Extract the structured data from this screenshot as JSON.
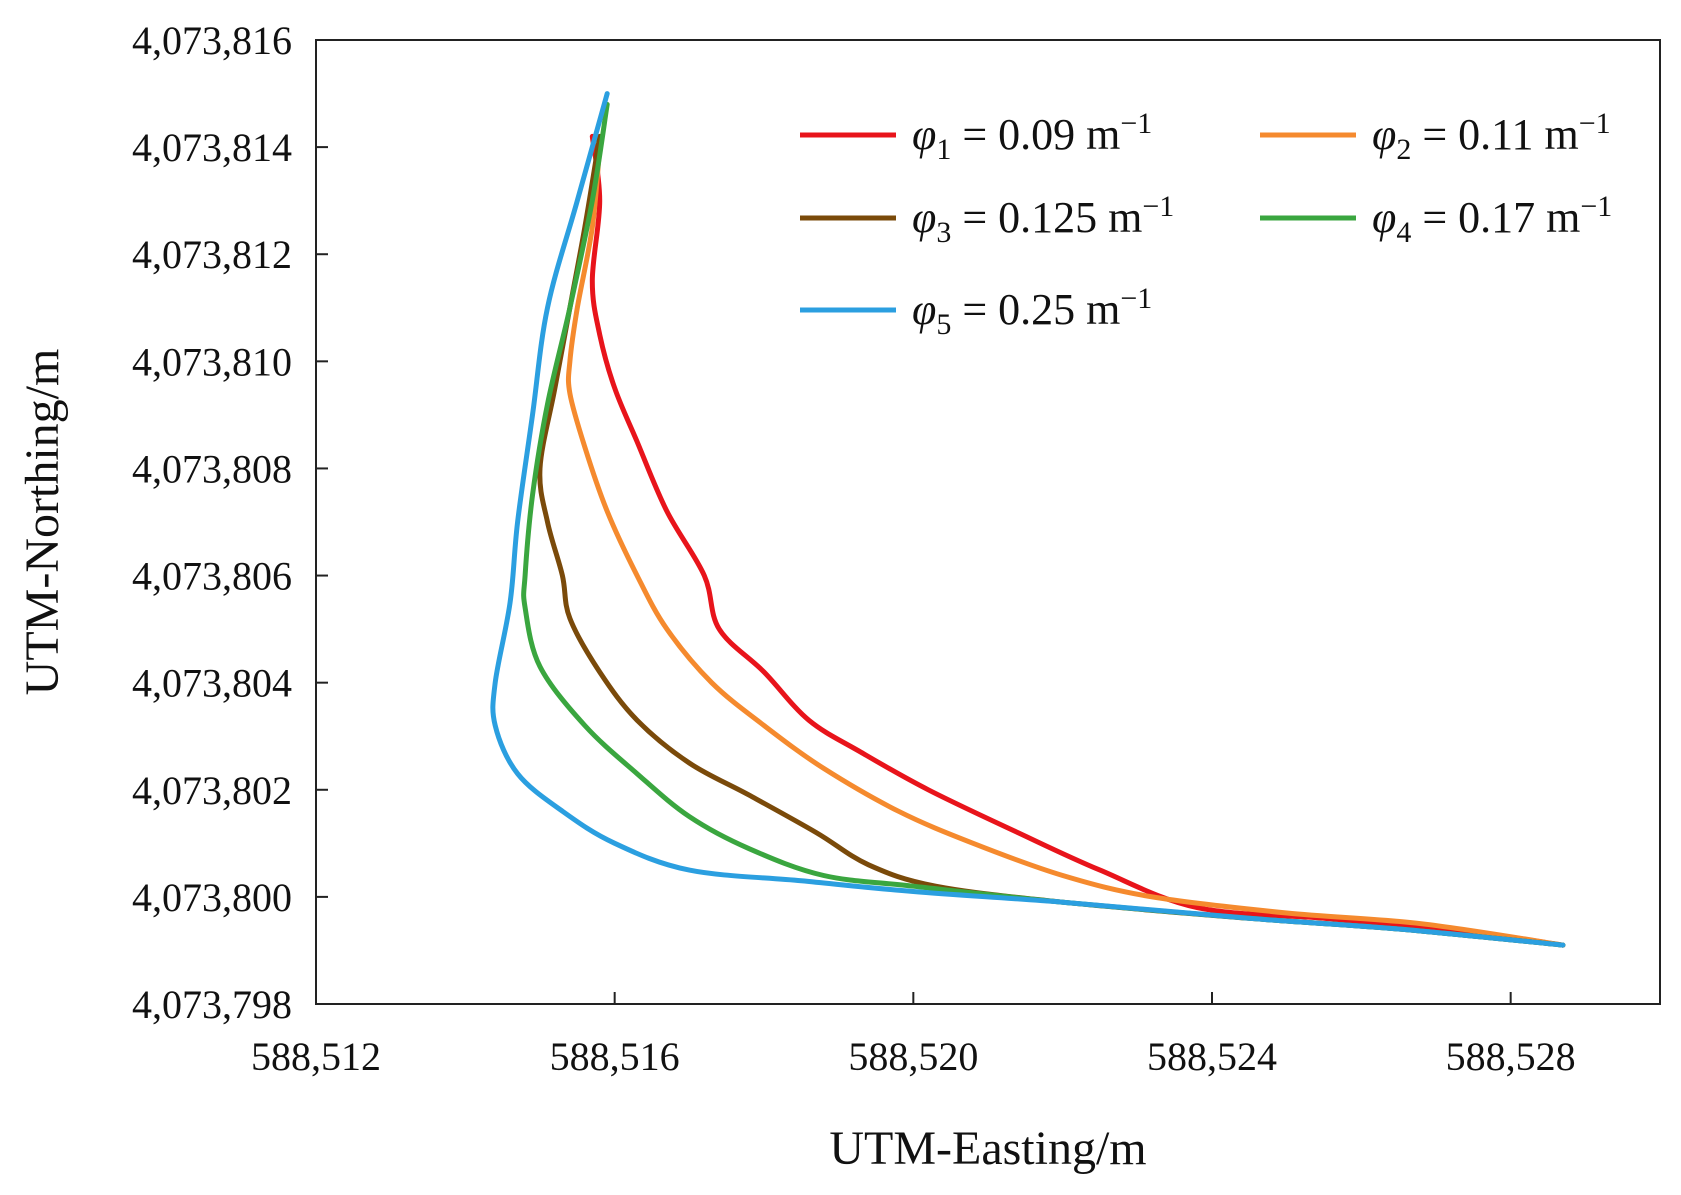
{
  "chart_data": {
    "type": "line",
    "title": "",
    "xlabel": "UTM-Easting/m",
    "ylabel": "UTM-Northing/m",
    "xlim": [
      588512,
      588530
    ],
    "ylim": [
      4073798,
      4073816
    ],
    "x_ticks": [
      588512,
      588516,
      588520,
      588524,
      588528
    ],
    "x_tick_labels": [
      "588,512",
      "588,516",
      "588,520",
      "588,524",
      "588,528"
    ],
    "y_ticks": [
      4073798,
      4073800,
      4073802,
      4073804,
      4073806,
      4073808,
      4073810,
      4073812,
      4073814,
      4073816
    ],
    "y_tick_labels": [
      "4,073,798",
      "4,073,800",
      "4,073,802",
      "4,073,804",
      "4,073,806",
      "4,073,808",
      "4,073,810",
      "4,073,812",
      "4,073,814",
      "4,073,816"
    ],
    "grid": false,
    "legend_position": "top-right",
    "series": [
      {
        "name": "φ1 = 0.09 m−1",
        "symbol": "φ",
        "subscript": "1",
        "value_text": " = 0.09 m",
        "superscript": "−1",
        "color": "#e8141b",
        "points": [
          [
            588515.7,
            4073814.2
          ],
          [
            588515.8,
            4073813.0
          ],
          [
            588515.7,
            4073811.5
          ],
          [
            588515.8,
            4073810.5
          ],
          [
            588516.0,
            4073809.5
          ],
          [
            588516.3,
            4073808.5
          ],
          [
            588516.7,
            4073807.2
          ],
          [
            588517.2,
            4073806.0
          ],
          [
            588517.4,
            4073805.0
          ],
          [
            588518.0,
            4073804.2
          ],
          [
            588518.6,
            4073803.3
          ],
          [
            588519.3,
            4073802.7
          ],
          [
            588520.2,
            4073802.0
          ],
          [
            588521.4,
            4073801.2
          ],
          [
            588522.5,
            4073800.5
          ],
          [
            588523.8,
            4073799.8
          ],
          [
            588525.5,
            4073799.6
          ],
          [
            588527.2,
            4073799.4
          ],
          [
            588528.7,
            4073799.1
          ]
        ]
      },
      {
        "name": "φ2 = 0.11 m−1",
        "symbol": "φ",
        "subscript": "2",
        "value_text": " = 0.11 m",
        "superscript": "−1",
        "color": "#f58a2e",
        "points": [
          [
            588515.8,
            4073814.0
          ],
          [
            588515.7,
            4073812.5
          ],
          [
            588515.5,
            4073811.0
          ],
          [
            588515.4,
            4073810.0
          ],
          [
            588515.4,
            4073809.4
          ],
          [
            588515.6,
            4073808.4
          ],
          [
            588515.9,
            4073807.2
          ],
          [
            588516.3,
            4073806.0
          ],
          [
            588516.7,
            4073805.0
          ],
          [
            588517.3,
            4073804.0
          ],
          [
            588518.0,
            4073803.2
          ],
          [
            588518.8,
            4073802.4
          ],
          [
            588519.8,
            4073801.6
          ],
          [
            588520.8,
            4073801.0
          ],
          [
            588522.0,
            4073800.4
          ],
          [
            588523.2,
            4073800.0
          ],
          [
            588525.0,
            4073799.7
          ],
          [
            588526.8,
            4073799.5
          ],
          [
            588528.7,
            4073799.1
          ]
        ]
      },
      {
        "name": "φ3 = 0.125 m−1",
        "symbol": "φ",
        "subscript": "3",
        "value_text": " = 0.125 m",
        "superscript": "−1",
        "color": "#7a4a0a",
        "points": [
          [
            588515.8,
            4073814.2
          ],
          [
            588515.6,
            4073812.5
          ],
          [
            588515.4,
            4073811.0
          ],
          [
            588515.2,
            4073809.5
          ],
          [
            588515.0,
            4073808.0
          ],
          [
            588515.1,
            4073807.0
          ],
          [
            588515.3,
            4073806.0
          ],
          [
            588515.4,
            4073805.2
          ],
          [
            588515.8,
            4073804.2
          ],
          [
            588516.3,
            4073803.3
          ],
          [
            588517.0,
            4073802.5
          ],
          [
            588517.8,
            4073801.9
          ],
          [
            588518.7,
            4073801.2
          ],
          [
            588519.4,
            4073800.6
          ],
          [
            588520.3,
            4073800.2
          ],
          [
            588522.0,
            4073799.9
          ],
          [
            588524.5,
            4073799.6
          ],
          [
            588526.5,
            4073799.4
          ],
          [
            588528.7,
            4073799.1
          ]
        ]
      },
      {
        "name": "φ4 = 0.17 m−1",
        "symbol": "φ",
        "subscript": "4",
        "value_text": " = 0.17 m",
        "superscript": "−1",
        "color": "#3aa63f",
        "points": [
          [
            588515.9,
            4073814.8
          ],
          [
            588515.7,
            4073813.0
          ],
          [
            588515.4,
            4073811.0
          ],
          [
            588515.1,
            4073809.2
          ],
          [
            588514.9,
            4073807.5
          ],
          [
            588514.8,
            4073806.0
          ],
          [
            588514.8,
            4073805.4
          ],
          [
            588515.0,
            4073804.3
          ],
          [
            588515.6,
            4073803.2
          ],
          [
            588516.3,
            4073802.3
          ],
          [
            588517.0,
            4073801.5
          ],
          [
            588517.8,
            4073800.9
          ],
          [
            588518.8,
            4073800.4
          ],
          [
            588520.0,
            4073800.2
          ],
          [
            588522.0,
            4073799.9
          ],
          [
            588524.5,
            4073799.6
          ],
          [
            588526.5,
            4073799.4
          ],
          [
            588528.7,
            4073799.1
          ]
        ]
      },
      {
        "name": "φ5 = 0.25 m−1",
        "symbol": "φ",
        "subscript": "5",
        "value_text": " = 0.25 m",
        "superscript": "−1",
        "color": "#2b9fe0",
        "points": [
          [
            588515.9,
            4073815.0
          ],
          [
            588515.5,
            4073813.0
          ],
          [
            588515.1,
            4073811.0
          ],
          [
            588514.9,
            4073809.0
          ],
          [
            588514.7,
            4073807.0
          ],
          [
            588514.6,
            4073805.5
          ],
          [
            588514.4,
            4073804.0
          ],
          [
            588514.4,
            4073803.2
          ],
          [
            588514.7,
            4073802.3
          ],
          [
            588515.3,
            4073801.6
          ],
          [
            588516.0,
            4073801.0
          ],
          [
            588517.0,
            4073800.5
          ],
          [
            588518.5,
            4073800.3
          ],
          [
            588520.0,
            4073800.1
          ],
          [
            588522.0,
            4073799.9
          ],
          [
            588524.5,
            4073799.6
          ],
          [
            588526.5,
            4073799.4
          ],
          [
            588528.7,
            4073799.1
          ]
        ]
      }
    ]
  }
}
